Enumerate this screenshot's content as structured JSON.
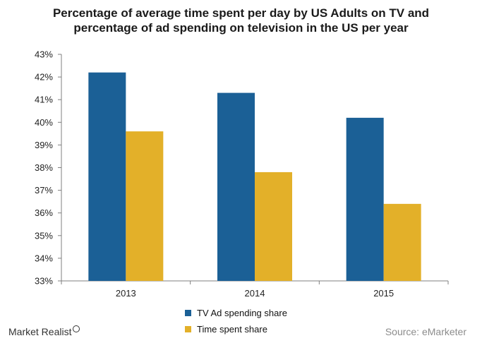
{
  "chart_data": {
    "type": "bar",
    "title": "Percentage of average time spent per day by US Adults on TV and percentage of ad spending on television in the US per year",
    "categories": [
      "2013",
      "2014",
      "2015"
    ],
    "series": [
      {
        "name": "TV Ad spending share",
        "values": [
          42.2,
          41.3,
          40.2
        ],
        "color": "#1b6096"
      },
      {
        "name": "Time spent share",
        "values": [
          39.6,
          37.8,
          36.4
        ],
        "color": "#e3b029"
      }
    ],
    "ylim": [
      33,
      43
    ],
    "yticks": [
      "33%",
      "34%",
      "35%",
      "36%",
      "37%",
      "38%",
      "39%",
      "40%",
      "41%",
      "42%",
      "43%"
    ],
    "xlabel": "",
    "ylabel": "",
    "legend_position": "bottom"
  },
  "footer": {
    "logo_text": "Market Realist",
    "source": "Source: eMarketer"
  }
}
